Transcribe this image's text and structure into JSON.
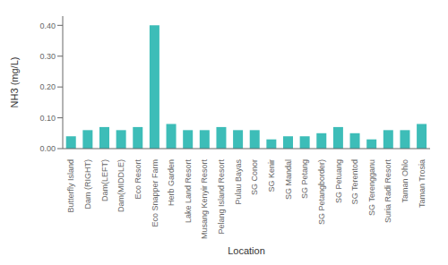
{
  "chart_data": {
    "type": "bar",
    "xlabel": "Location",
    "ylabel": "NH3 (mg/L)",
    "categories": [
      "Butterfly Island",
      "Dam (RIGHT)",
      "Dam(LEFT)",
      "Dam(MIDDLE)",
      "Eco Resort",
      "Eco Snapper Farm",
      "Herb Garden",
      "Lake Land Resort",
      "Musang Kenyir Resort",
      "Pelang Island Resort",
      "Pulau Bayas",
      "SG Conor",
      "SG Kenir",
      "SG Mandal",
      "SG Petang",
      "SG Petangborder)",
      "SG Petuang",
      "SG Terentod",
      "SG Terengganu",
      "Suria Radi Resort",
      "Taman Ohlo",
      "Taman Trosia"
    ],
    "values": [
      0.04,
      0.06,
      0.07,
      0.06,
      0.07,
      0.4,
      0.08,
      0.06,
      0.06,
      0.07,
      0.06,
      0.06,
      0.03,
      0.04,
      0.04,
      0.05,
      0.07,
      0.05,
      0.03,
      0.06,
      0.06,
      0.08
    ],
    "color": "#3dbdb8",
    "ylim": [
      0.0,
      0.43
    ],
    "yticks": [
      {
        "value": 0.0,
        "label": "0.00"
      },
      {
        "value": 0.1,
        "label": "0.10"
      },
      {
        "value": 0.2,
        "label": "0.20"
      },
      {
        "value": 0.3,
        "label": "0.30"
      },
      {
        "value": 0.4,
        "label": "0.40"
      }
    ],
    "grid": false
  }
}
